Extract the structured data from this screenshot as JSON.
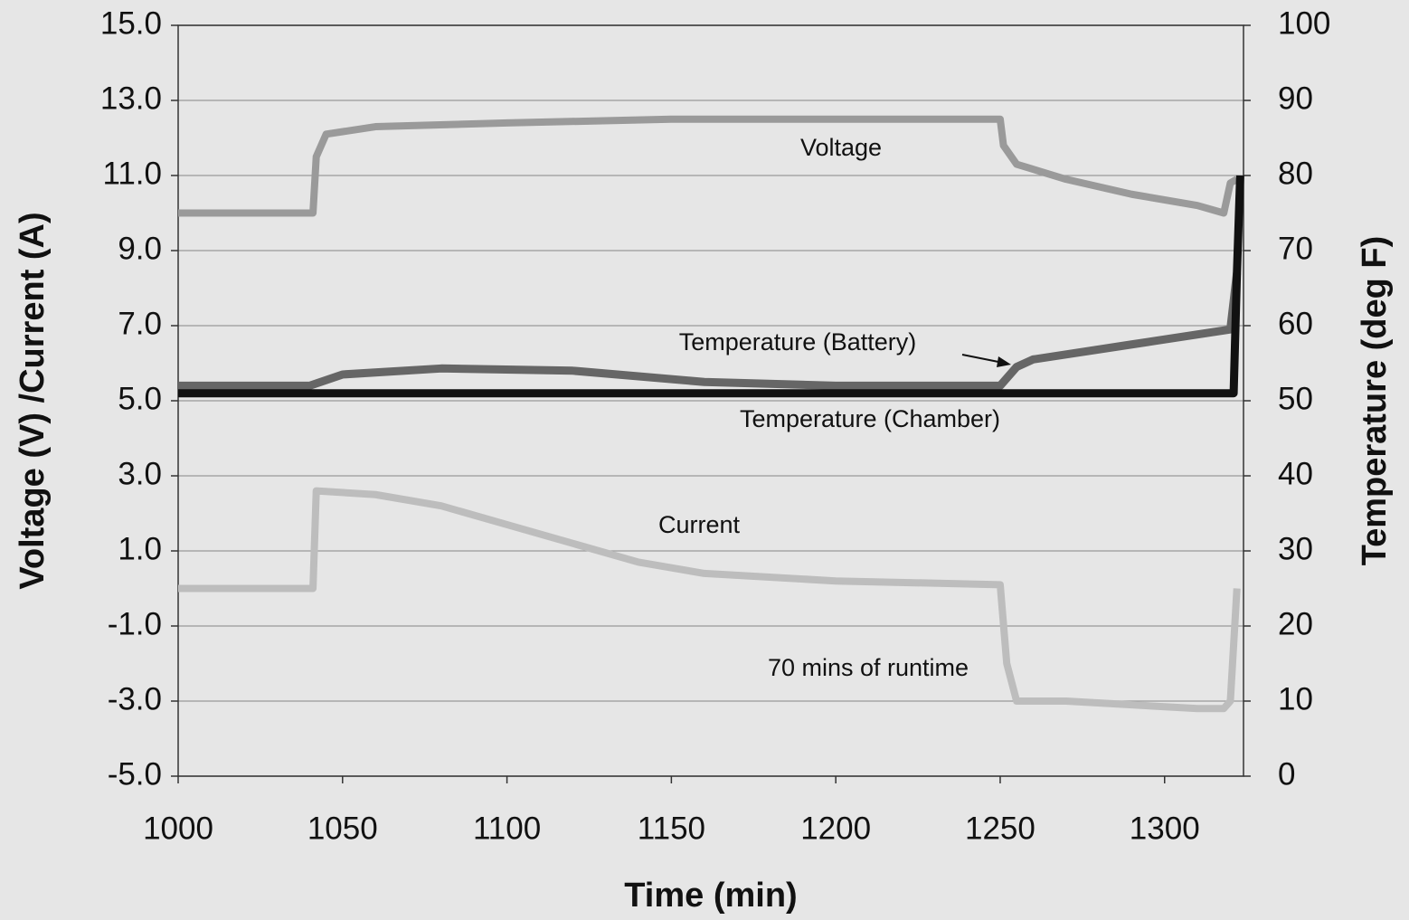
{
  "chart_data": {
    "type": "line",
    "xlabel": "Time (min)",
    "ylabel": "Voltage (V) /Current (A)",
    "y2label": "Temperature (deg F)",
    "xlim": [
      1000,
      1324
    ],
    "xticks": [
      1000,
      1050,
      1100,
      1150,
      1200,
      1250,
      1300
    ],
    "ylim": [
      -5,
      15
    ],
    "yticks": [
      {
        "value": -5,
        "label": "-5.0"
      },
      {
        "value": -3,
        "label": "-3.0"
      },
      {
        "value": -1,
        "label": "-1.0"
      },
      {
        "value": 1,
        "label": "1.0"
      },
      {
        "value": 3,
        "label": "3.0"
      },
      {
        "value": 5,
        "label": "5.0"
      },
      {
        "value": 7,
        "label": "7.0"
      },
      {
        "value": 9,
        "label": "9.0"
      },
      {
        "value": 11,
        "label": "11.0"
      },
      {
        "value": 13,
        "label": "13.0"
      },
      {
        "value": 15,
        "label": "15.0"
      }
    ],
    "y2lim": [
      0,
      100
    ],
    "y2ticks": [
      0,
      10,
      20,
      30,
      40,
      50,
      60,
      70,
      80,
      90,
      100
    ],
    "grid": true,
    "series": [
      {
        "name": "Voltage",
        "color": "#9a9a9a",
        "x": [
          1000,
          1041,
          1042,
          1045,
          1060,
          1100,
          1150,
          1250,
          1251,
          1255,
          1270,
          1290,
          1310,
          1318,
          1320,
          1322
        ],
        "values": [
          10.0,
          10.0,
          11.5,
          12.1,
          12.3,
          12.4,
          12.5,
          12.5,
          11.8,
          11.3,
          10.9,
          10.5,
          10.2,
          10.0,
          10.8,
          10.9
        ]
      },
      {
        "name": "Current",
        "color": "#bdbdbd",
        "x": [
          1000,
          1041,
          1042,
          1060,
          1080,
          1100,
          1120,
          1140,
          1160,
          1200,
          1250,
          1252,
          1255,
          1270,
          1290,
          1310,
          1318,
          1320,
          1322
        ],
        "values": [
          0.0,
          0.0,
          2.6,
          2.5,
          2.2,
          1.7,
          1.2,
          0.7,
          0.4,
          0.2,
          0.1,
          -2.0,
          -3.0,
          -3.0,
          -3.1,
          -3.2,
          -3.2,
          -3.0,
          0.0
        ]
      },
      {
        "name": "Temperature (Battery)",
        "color": "#666666",
        "axis": "y2",
        "x": [
          1000,
          1040,
          1050,
          1080,
          1120,
          1160,
          1200,
          1250,
          1255,
          1260,
          1290,
          1320,
          1322
        ],
        "values": [
          52,
          52,
          53.5,
          54.3,
          54,
          52.5,
          52,
          52,
          54.5,
          55.5,
          57.5,
          59.5,
          67
        ]
      },
      {
        "name": "Temperature (Chamber)",
        "color": "#111111",
        "axis": "y2",
        "x": [
          1000,
          1100,
          1200,
          1300,
          1321,
          1322,
          1323
        ],
        "values": [
          51,
          51,
          51,
          51,
          51,
          67,
          80
        ]
      }
    ],
    "annotations": [
      "70 mins of runtime"
    ]
  }
}
